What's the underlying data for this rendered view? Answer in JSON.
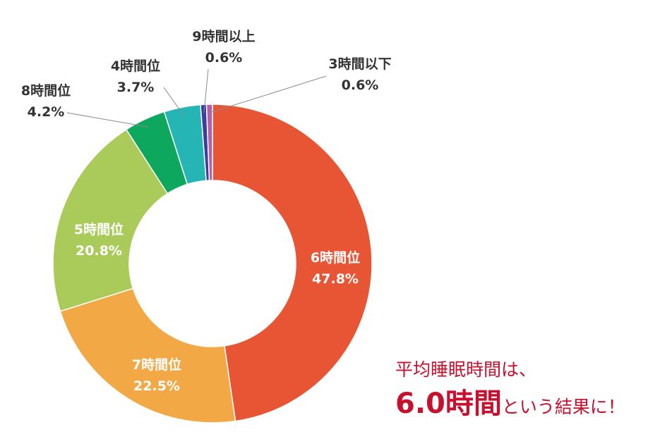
{
  "chart_data": {
    "type": "pie",
    "variant": "donut",
    "slices": [
      {
        "label": "6時間位",
        "value_label": "47.8%",
        "value": 47.8,
        "color": "#E85535",
        "label_color": "#ffffff"
      },
      {
        "label": "7時間位",
        "value_label": "22.5%",
        "value": 22.5,
        "color": "#F3A846",
        "label_color": "#ffffff"
      },
      {
        "label": "5時間位",
        "value_label": "20.8%",
        "value": 20.8,
        "color": "#AACB5A",
        "label_color": "#ffffff"
      },
      {
        "label": "8時間位",
        "value_label": "4.2%",
        "value": 4.2,
        "color": "#0DA85E",
        "label_color": "#333333"
      },
      {
        "label": "4時間位",
        "value_label": "3.7%",
        "value": 3.7,
        "color": "#26B5B5",
        "label_color": "#333333"
      },
      {
        "label": "9時間以上",
        "value_label": "0.6%",
        "value": 0.6,
        "color": "#3A3F9E",
        "label_color": "#333333"
      },
      {
        "label": "3時間以下",
        "value_label": "0.6%",
        "value": 0.6,
        "color": "#B45FA8",
        "label_color": "#333333"
      }
    ]
  },
  "annotation": {
    "line1": "平均睡眠時間は、",
    "line2_big": "6.0時間",
    "line2_small": "という結果に！",
    "color": "#c8102e"
  }
}
